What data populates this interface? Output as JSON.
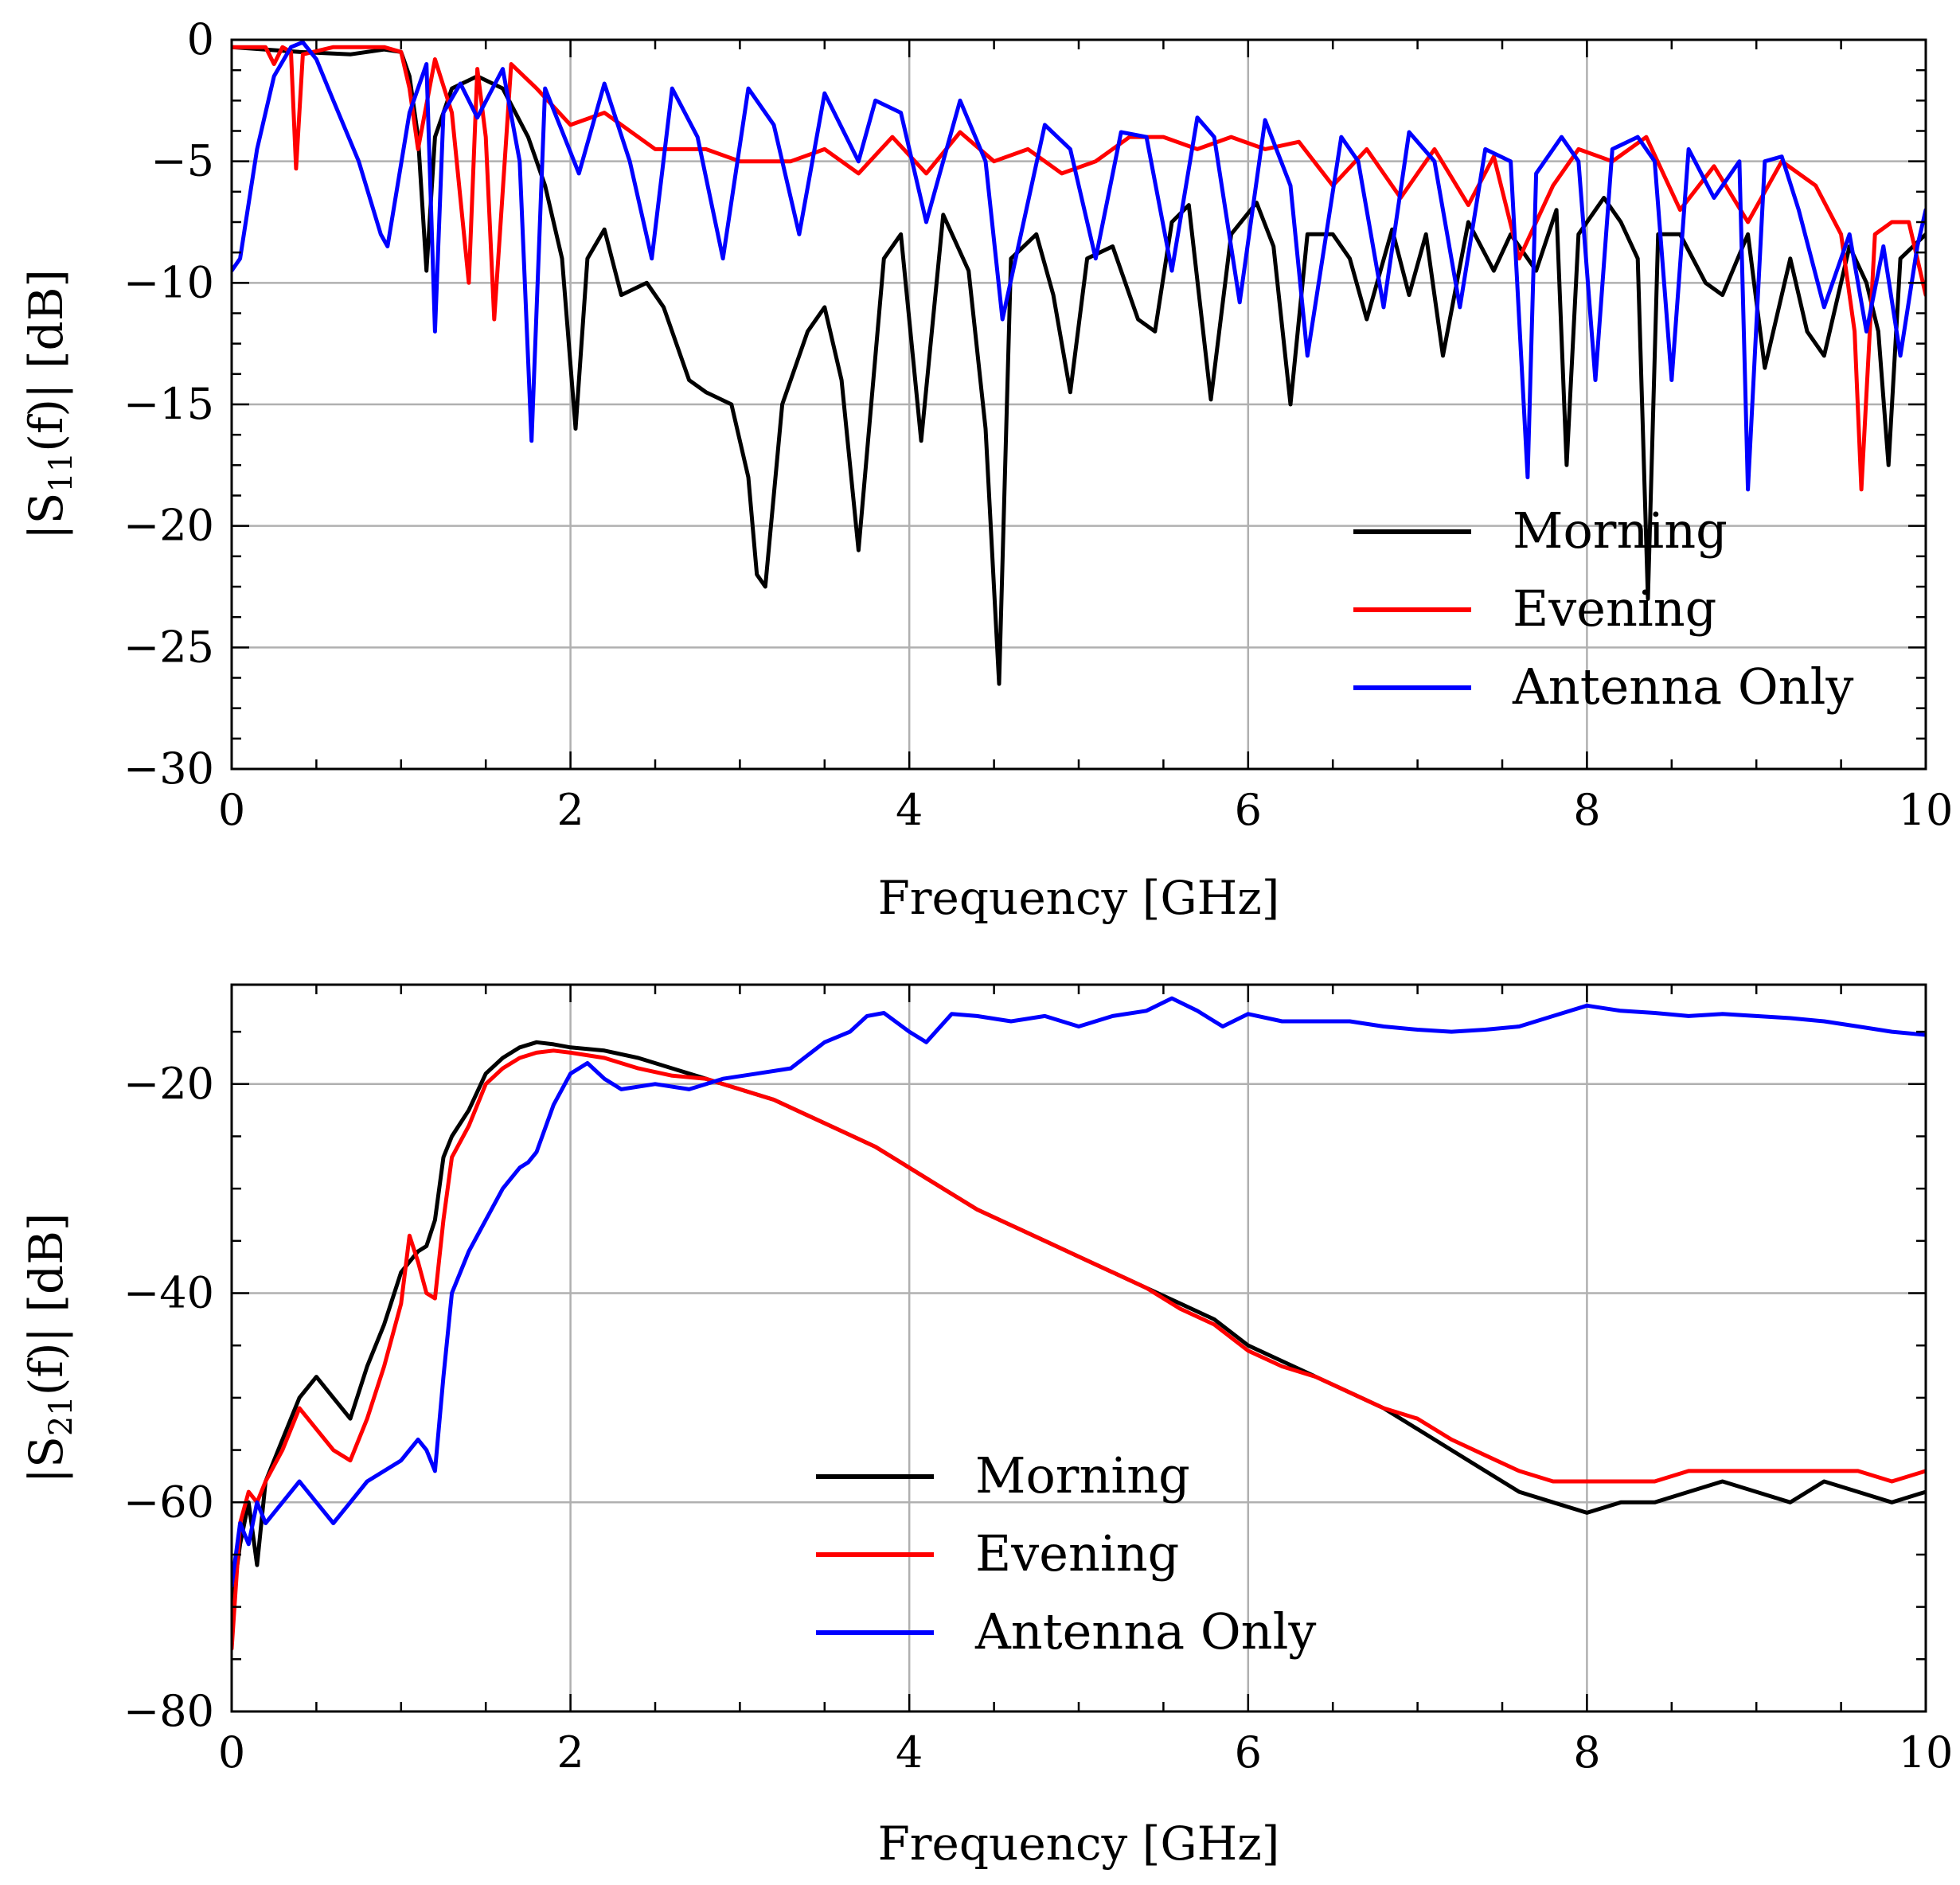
{
  "chart_data": [
    {
      "type": "line",
      "id": "s11",
      "xlabel": "Frequency [GHz]",
      "ylabel": "|S11(f)| [dB]",
      "ylabel_parts": {
        "pre": "|S",
        "sub": "11",
        "post": "(f)| [dB]"
      },
      "xlim": [
        0,
        10
      ],
      "ylim": [
        -30,
        0
      ],
      "xticks": [
        0,
        2,
        4,
        6,
        8,
        10
      ],
      "xtick_labels": [
        "0",
        "2",
        "4",
        "6",
        "8",
        "10"
      ],
      "yticks": [
        -30,
        -25,
        -20,
        -15,
        -10,
        -5,
        0
      ],
      "ytick_labels": [
        "−30",
        "−25",
        "−20",
        "−15",
        "−10",
        "−5",
        "0"
      ],
      "grid": true,
      "legend_position": "lower-right",
      "series": [
        {
          "name": "Morning",
          "color": "#000000",
          "x": [
            0,
            0.4,
            0.7,
            0.9,
            1.0,
            1.05,
            1.1,
            1.15,
            1.2,
            1.3,
            1.45,
            1.6,
            1.75,
            1.85,
            1.95,
            2.03,
            2.1,
            2.2,
            2.3,
            2.45,
            2.55,
            2.7,
            2.8,
            2.95,
            3.05,
            3.1,
            3.15,
            3.25,
            3.4,
            3.5,
            3.6,
            3.7,
            3.85,
            3.95,
            4.07,
            4.2,
            4.35,
            4.45,
            4.53,
            4.6,
            4.75,
            4.85,
            4.95,
            5.05,
            5.2,
            5.35,
            5.45,
            5.55,
            5.65,
            5.78,
            5.9,
            6.05,
            6.15,
            6.25,
            6.35,
            6.5,
            6.6,
            6.7,
            6.85,
            6.95,
            7.05,
            7.15,
            7.3,
            7.45,
            7.55,
            7.7,
            7.82,
            7.88,
            7.95,
            8.1,
            8.2,
            8.3,
            8.36,
            8.42,
            8.55,
            8.7,
            8.8,
            8.95,
            9.05,
            9.2,
            9.3,
            9.4,
            9.55,
            9.65,
            9.72,
            9.78,
            9.85,
            10.0
          ],
          "y": [
            -0.3,
            -0.5,
            -0.6,
            -0.4,
            -0.5,
            -1.5,
            -4,
            -9.5,
            -4,
            -2,
            -1.5,
            -2,
            -4,
            -6,
            -9,
            -16,
            -9,
            -7.8,
            -10.5,
            -10,
            -11,
            -14,
            -14.5,
            -15,
            -18,
            -22,
            -22.5,
            -15,
            -12,
            -11,
            -14,
            -21,
            -9,
            -8,
            -16.5,
            -7.2,
            -9.5,
            -16,
            -26.5,
            -9,
            -8,
            -10.5,
            -14.5,
            -9,
            -8.5,
            -11.5,
            -12,
            -7.5,
            -6.8,
            -14.8,
            -8,
            -6.7,
            -8.5,
            -15,
            -8,
            -8,
            -9,
            -11.5,
            -7.8,
            -10.5,
            -8,
            -13,
            -7.5,
            -9.5,
            -8,
            -9.5,
            -7,
            -17.5,
            -8,
            -6.5,
            -7.5,
            -9,
            -23,
            -8,
            -8,
            -10,
            -10.5,
            -8,
            -13.5,
            -9,
            -12,
            -13,
            -8.5,
            -10,
            -12,
            -17.5,
            -9,
            -8
          ]
        },
        {
          "name": "Evening",
          "color": "#ff0000",
          "x": [
            0,
            0.2,
            0.25,
            0.3,
            0.35,
            0.38,
            0.42,
            0.6,
            0.9,
            1.0,
            1.05,
            1.1,
            1.2,
            1.3,
            1.4,
            1.45,
            1.5,
            1.55,
            1.65,
            1.8,
            2.0,
            2.2,
            2.5,
            2.8,
            3.0,
            3.3,
            3.5,
            3.7,
            3.9,
            4.1,
            4.3,
            4.5,
            4.7,
            4.9,
            5.1,
            5.3,
            5.5,
            5.7,
            5.9,
            6.1,
            6.3,
            6.5,
            6.7,
            6.9,
            7.1,
            7.3,
            7.45,
            7.6,
            7.8,
            7.95,
            8.15,
            8.35,
            8.55,
            8.75,
            8.95,
            9.15,
            9.35,
            9.5,
            9.58,
            9.62,
            9.7,
            9.8,
            9.9,
            10.0
          ],
          "y": [
            -0.3,
            -0.3,
            -1,
            -0.3,
            -0.5,
            -5.3,
            -0.6,
            -0.3,
            -0.3,
            -0.5,
            -2,
            -4.5,
            -0.8,
            -3,
            -10,
            -1.2,
            -4,
            -11.5,
            -1,
            -2,
            -3.5,
            -3,
            -4.5,
            -4.5,
            -5,
            -5,
            -4.5,
            -5.5,
            -4,
            -5.5,
            -3.8,
            -5,
            -4.5,
            -5.5,
            -5,
            -4,
            -4,
            -4.5,
            -4,
            -4.5,
            -4.2,
            -6,
            -4.5,
            -6.5,
            -4.5,
            -6.8,
            -4.8,
            -9,
            -6,
            -4.5,
            -5,
            -4,
            -7,
            -5.2,
            -7.5,
            -5,
            -6,
            -8,
            -12,
            -18.5,
            -8,
            -7.5,
            -7.5,
            -10.5
          ]
        },
        {
          "name": "Antenna Only",
          "color": "#0000ff",
          "x": [
            0,
            0.05,
            0.15,
            0.25,
            0.35,
            0.42,
            0.5,
            0.6,
            0.75,
            0.88,
            0.92,
            1.05,
            1.15,
            1.2,
            1.25,
            1.35,
            1.45,
            1.6,
            1.7,
            1.77,
            1.85,
            2.05,
            2.2,
            2.35,
            2.48,
            2.6,
            2.75,
            2.9,
            3.05,
            3.2,
            3.35,
            3.5,
            3.7,
            3.8,
            3.95,
            4.1,
            4.3,
            4.45,
            4.55,
            4.8,
            4.95,
            5.1,
            5.25,
            5.4,
            5.55,
            5.7,
            5.8,
            5.95,
            6.1,
            6.25,
            6.35,
            6.55,
            6.65,
            6.8,
            6.95,
            7.1,
            7.25,
            7.4,
            7.55,
            7.65,
            7.7,
            7.85,
            7.95,
            8.05,
            8.15,
            8.3,
            8.4,
            8.5,
            8.6,
            8.75,
            8.9,
            8.95,
            9.05,
            9.15,
            9.25,
            9.4,
            9.55,
            9.65,
            9.75,
            9.85,
            9.95,
            10.0
          ],
          "y": [
            -9.5,
            -9,
            -4.5,
            -1.5,
            -0.3,
            -0.1,
            -0.8,
            -2.5,
            -5,
            -8,
            -8.5,
            -3,
            -1,
            -12,
            -3,
            -1.8,
            -3.2,
            -1.2,
            -5,
            -16.5,
            -2,
            -5.5,
            -1.8,
            -5,
            -9,
            -2,
            -4,
            -9,
            -2,
            -3.5,
            -8,
            -2.2,
            -5,
            -2.5,
            -3,
            -7.5,
            -2.5,
            -5,
            -11.5,
            -3.5,
            -4.5,
            -9,
            -3.8,
            -4,
            -9.5,
            -3.2,
            -4,
            -10.8,
            -3.3,
            -6,
            -13,
            -4,
            -5,
            -11,
            -3.8,
            -5,
            -11,
            -4.5,
            -5,
            -18,
            -5.5,
            -4,
            -5,
            -14,
            -4.5,
            -4,
            -5,
            -14,
            -4.5,
            -6.5,
            -5,
            -18.5,
            -5,
            -4.8,
            -7,
            -11,
            -8,
            -12,
            -8.5,
            -13,
            -8.5,
            -7
          ]
        }
      ],
      "legend": [
        "Morning",
        "Evening",
        "Antenna Only"
      ]
    },
    {
      "type": "line",
      "id": "s21",
      "xlabel": "Frequency [GHz]",
      "ylabel": "|S21(f)| [dB]",
      "ylabel_parts": {
        "pre": "|S",
        "sub": "21",
        "post": "(f)| [dB]"
      },
      "xlim": [
        0,
        10
      ],
      "ylim": [
        -80,
        -10.5
      ],
      "xticks": [
        0,
        2,
        4,
        6,
        8,
        10
      ],
      "xtick_labels": [
        "0",
        "2",
        "4",
        "6",
        "8",
        "10"
      ],
      "yticks": [
        -80,
        -60,
        -40,
        -20
      ],
      "ytick_labels": [
        "−80",
        "−60",
        "−40",
        "−20"
      ],
      "grid": true,
      "legend_position": "lower-center",
      "series": [
        {
          "name": "Morning",
          "color": "#000000",
          "x": [
            0,
            0.05,
            0.1,
            0.15,
            0.2,
            0.3,
            0.4,
            0.5,
            0.6,
            0.7,
            0.8,
            0.9,
            1.0,
            1.05,
            1.1,
            1.15,
            1.2,
            1.25,
            1.3,
            1.4,
            1.5,
            1.6,
            1.7,
            1.8,
            1.9,
            2.0,
            2.2,
            2.4,
            2.6,
            2.8,
            3.0,
            3.2,
            3.4,
            3.6,
            3.8,
            4.0,
            4.2,
            4.4,
            4.6,
            4.8,
            5.0,
            5.2,
            5.4,
            5.6,
            5.8,
            6.0,
            6.2,
            6.4,
            6.6,
            6.8,
            7.0,
            7.2,
            7.4,
            7.6,
            7.8,
            8.0,
            8.2,
            8.4,
            8.6,
            8.8,
            9.0,
            9.2,
            9.4,
            9.6,
            9.8,
            10.0
          ],
          "y": [
            -70,
            -64,
            -60,
            -66,
            -58,
            -54,
            -50,
            -48,
            -50,
            -52,
            -47,
            -43,
            -38,
            -37,
            -36,
            -35.5,
            -33,
            -27,
            -25,
            -22.5,
            -19,
            -17.5,
            -16.5,
            -16,
            -16.2,
            -16.5,
            -16.8,
            -17.5,
            -18.5,
            -19.5,
            -20.5,
            -21.5,
            -23,
            -24.5,
            -26,
            -28,
            -30,
            -32,
            -33.5,
            -35,
            -36.5,
            -38,
            -39.5,
            -41,
            -42.5,
            -45,
            -46.5,
            -48,
            -49.5,
            -51,
            -53,
            -55,
            -57,
            -59,
            -60,
            -61,
            -60,
            -60,
            -59,
            -58,
            -59,
            -60,
            -58,
            -59,
            -60,
            -59
          ]
        },
        {
          "name": "Evening",
          "color": "#ff0000",
          "x": [
            0,
            0.05,
            0.1,
            0.15,
            0.2,
            0.3,
            0.4,
            0.5,
            0.6,
            0.7,
            0.8,
            0.9,
            1.0,
            1.05,
            1.1,
            1.15,
            1.2,
            1.25,
            1.3,
            1.4,
            1.5,
            1.6,
            1.7,
            1.8,
            1.9,
            2.0,
            2.2,
            2.4,
            2.6,
            2.8,
            3.0,
            3.2,
            3.4,
            3.6,
            3.8,
            4.0,
            4.2,
            4.4,
            4.6,
            4.8,
            5.0,
            5.2,
            5.4,
            5.6,
            5.8,
            6.0,
            6.2,
            6.4,
            6.6,
            6.8,
            7.0,
            7.2,
            7.4,
            7.6,
            7.8,
            8.0,
            8.2,
            8.4,
            8.6,
            8.8,
            9.0,
            9.2,
            9.4,
            9.6,
            9.8,
            10.0
          ],
          "y": [
            -74,
            -62,
            -59,
            -60,
            -58,
            -55,
            -51,
            -53,
            -55,
            -56,
            -52,
            -47,
            -41,
            -34.5,
            -37,
            -40,
            -40.5,
            -33,
            -27,
            -24,
            -20,
            -18.5,
            -17.5,
            -17,
            -16.8,
            -17,
            -17.5,
            -18.5,
            -19.2,
            -19.5,
            -20.5,
            -21.5,
            -23,
            -24.5,
            -26,
            -28,
            -30,
            -32,
            -33.5,
            -35,
            -36.5,
            -38,
            -39.5,
            -41.5,
            -43,
            -45.5,
            -47,
            -48,
            -49.5,
            -51,
            -52,
            -54,
            -55.5,
            -57,
            -58,
            -58,
            -58,
            -58,
            -57,
            -57,
            -57,
            -57,
            -57,
            -57,
            -58,
            -57
          ]
        },
        {
          "name": "Antenna Only",
          "color": "#0000ff",
          "x": [
            0,
            0.05,
            0.1,
            0.15,
            0.2,
            0.3,
            0.4,
            0.5,
            0.6,
            0.7,
            0.8,
            0.9,
            1.0,
            1.1,
            1.15,
            1.2,
            1.25,
            1.3,
            1.4,
            1.5,
            1.6,
            1.7,
            1.75,
            1.8,
            1.9,
            2.0,
            2.1,
            2.2,
            2.3,
            2.5,
            2.7,
            2.9,
            3.1,
            3.3,
            3.5,
            3.65,
            3.75,
            3.85,
            4.0,
            4.1,
            4.25,
            4.4,
            4.6,
            4.8,
            5.0,
            5.2,
            5.4,
            5.55,
            5.7,
            5.85,
            6.0,
            6.2,
            6.4,
            6.6,
            6.8,
            7.0,
            7.2,
            7.4,
            7.6,
            7.8,
            8.0,
            8.2,
            8.4,
            8.6,
            8.8,
            9.0,
            9.2,
            9.4,
            9.6,
            9.8,
            10.0
          ],
          "y": [
            -68,
            -62,
            -64,
            -60,
            -62,
            -60,
            -58,
            -60,
            -62,
            -60,
            -58,
            -57,
            -56,
            -54,
            -55,
            -57,
            -48,
            -40,
            -36,
            -33,
            -30,
            -28,
            -27.5,
            -26.5,
            -22,
            -19,
            -18,
            -19.5,
            -20.5,
            -20,
            -20.5,
            -19.5,
            -19,
            -18.5,
            -16,
            -15,
            -13.5,
            -13.2,
            -15,
            -16,
            -13.3,
            -13.5,
            -14,
            -13.5,
            -14.5,
            -13.5,
            -13,
            -11.8,
            -13,
            -14.5,
            -13.3,
            -14,
            -14,
            -14,
            -14.5,
            -14.8,
            -15,
            -14.8,
            -14.5,
            -13.5,
            -12.5,
            -13,
            -13.2,
            -13.5,
            -13.3,
            -13.5,
            -13.7,
            -14,
            -14.5,
            -15,
            -15.3
          ]
        }
      ],
      "legend": [
        "Morning",
        "Evening",
        "Antenna Only"
      ]
    }
  ]
}
